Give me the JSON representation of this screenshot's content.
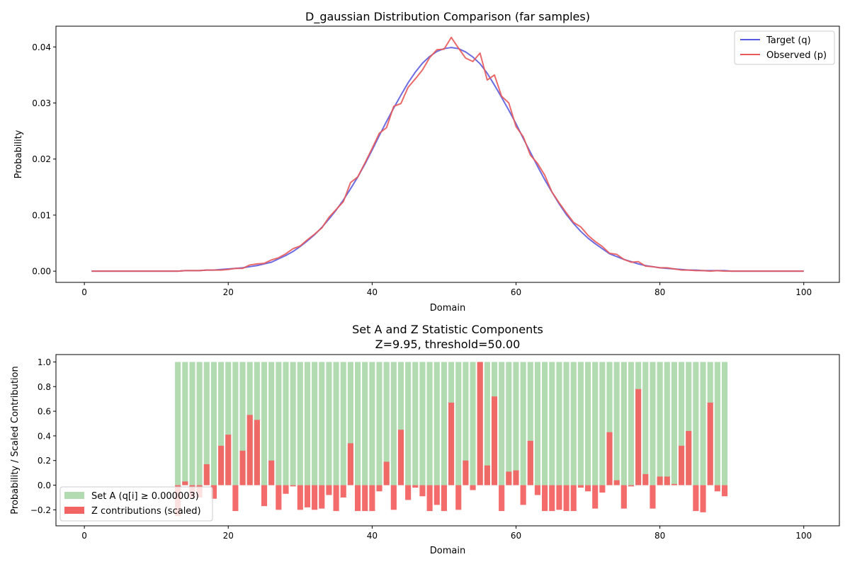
{
  "figure": {
    "charts": [
      {
        "title": "D_gaussian Distribution Comparison (far samples)"
      },
      {
        "title_line1": "Set A and Z Statistic Components",
        "title_line2": "Z=9.95, threshold=50.00"
      }
    ]
  },
  "chart_data": [
    {
      "type": "line",
      "title": "D_gaussian Distribution Comparison (far samples)",
      "xlabel": "Domain",
      "ylabel": "Probability",
      "xlim": [
        -3.95,
        104.95
      ],
      "ylim": [
        -0.002,
        0.0437
      ],
      "xticks": [
        0,
        20,
        40,
        60,
        80,
        100
      ],
      "xtick_labels": [
        "0",
        "20",
        "40",
        "60",
        "80",
        "100"
      ],
      "yticks": [
        0.0,
        0.01,
        0.02,
        0.03,
        0.04
      ],
      "ytick_labels": [
        "0.00",
        "0.01",
        "0.02",
        "0.03",
        "0.04"
      ],
      "grid": false,
      "legend_position": "top-right",
      "x": [
        1,
        2,
        3,
        4,
        5,
        6,
        7,
        8,
        9,
        10,
        11,
        12,
        13,
        14,
        15,
        16,
        17,
        18,
        19,
        20,
        21,
        22,
        23,
        24,
        25,
        26,
        27,
        28,
        29,
        30,
        31,
        32,
        33,
        34,
        35,
        36,
        37,
        38,
        39,
        40,
        41,
        42,
        43,
        44,
        45,
        46,
        47,
        48,
        49,
        50,
        51,
        52,
        53,
        54,
        55,
        56,
        57,
        58,
        59,
        60,
        61,
        62,
        63,
        64,
        65,
        66,
        67,
        68,
        69,
        70,
        71,
        72,
        73,
        74,
        75,
        76,
        77,
        78,
        79,
        80,
        81,
        82,
        83,
        84,
        85,
        86,
        87,
        88,
        89,
        90,
        91,
        92,
        93,
        94,
        95,
        96,
        97,
        98,
        99,
        100
      ],
      "series": [
        {
          "name": "Target (q)",
          "color": "#5b5be0",
          "values": [
            0.0,
            0.0,
            0.0,
            0.0,
            0.0,
            0.0,
            0.0,
            0.0,
            0.0,
            0.0,
            0.0,
            0.0,
            0.0,
            0.0001,
            0.0001,
            0.0001,
            0.0002,
            0.0002,
            0.0003,
            0.0004,
            0.0005,
            0.0006,
            0.0008,
            0.001,
            0.0013,
            0.0016,
            0.0022,
            0.0028,
            0.0035,
            0.0044,
            0.0054,
            0.0065,
            0.0078,
            0.0093,
            0.0109,
            0.0127,
            0.0147,
            0.0168,
            0.0191,
            0.0216,
            0.0242,
            0.0267,
            0.0291,
            0.0314,
            0.0336,
            0.0355,
            0.0371,
            0.0383,
            0.0392,
            0.0397,
            0.0399,
            0.0397,
            0.0391,
            0.0382,
            0.037,
            0.0353,
            0.0332,
            0.031,
            0.0287,
            0.0263,
            0.0237,
            0.0212,
            0.0187,
            0.0163,
            0.0141,
            0.012,
            0.0101,
            0.0085,
            0.0071,
            0.0059,
            0.0049,
            0.004,
            0.0031,
            0.0026,
            0.0021,
            0.0017,
            0.0013,
            0.001,
            0.0008,
            0.0006,
            0.0005,
            0.0004,
            0.0003,
            0.0002,
            0.0002,
            0.0001,
            0.0001,
            0.0001,
            0.0001,
            0.0,
            0.0,
            0.0,
            0.0,
            0.0,
            0.0,
            0.0,
            0.0,
            0.0,
            0.0,
            0.0
          ]
        },
        {
          "name": "Observed (p)",
          "color": "#e85a5a",
          "values": [
            0.0,
            0.0,
            0.0,
            0.0,
            0.0,
            0.0,
            0.0,
            0.0,
            0.0,
            0.0,
            0.0,
            0.0,
            0.0,
            0.0001,
            0.0001,
            0.0001,
            0.0002,
            0.0002,
            0.0002,
            0.0003,
            0.0005,
            0.0005,
            0.0011,
            0.0013,
            0.0014,
            0.002,
            0.0024,
            0.0031,
            0.004,
            0.0045,
            0.0056,
            0.0066,
            0.0077,
            0.0096,
            0.011,
            0.0124,
            0.0158,
            0.0168,
            0.0193,
            0.0219,
            0.0246,
            0.0256,
            0.0294,
            0.0299,
            0.0328,
            0.0343,
            0.0359,
            0.0381,
            0.0395,
            0.0396,
            0.0417,
            0.0398,
            0.038,
            0.0374,
            0.0389,
            0.0341,
            0.035,
            0.0312,
            0.03,
            0.0258,
            0.024,
            0.0207,
            0.0192,
            0.0171,
            0.0141,
            0.0122,
            0.0104,
            0.0087,
            0.0079,
            0.0064,
            0.0053,
            0.0044,
            0.0032,
            0.003,
            0.0021,
            0.0016,
            0.0017,
            0.0009,
            0.0008,
            0.0006,
            0.0006,
            0.0004,
            0.0002,
            0.0002,
            0.0001,
            0.0001,
            0.0,
            0.0001,
            0.0,
            0.0,
            0.0,
            0.0,
            0.0,
            0.0,
            0.0,
            0.0,
            0.0,
            0.0,
            0.0,
            0.0
          ]
        }
      ]
    },
    {
      "type": "bar",
      "title": "Set A and Z Statistic Components\nZ=9.95, threshold=50.00",
      "xlabel": "Domain",
      "ylabel": "Probability / Scaled Contribution",
      "xlim": [
        -3.95,
        104.95
      ],
      "ylim": [
        -0.33,
        1.06
      ],
      "xticks": [
        0,
        20,
        40,
        60,
        80,
        100
      ],
      "xtick_labels": [
        "0",
        "20",
        "40",
        "60",
        "80",
        "100"
      ],
      "yticks": [
        -0.2,
        0.0,
        0.2,
        0.4,
        0.6,
        0.8,
        1.0
      ],
      "ytick_labels": [
        "−0.2",
        "0.0",
        "0.2",
        "0.4",
        "0.6",
        "0.8",
        "1.0"
      ],
      "grid": false,
      "legend_position": "bottom-left",
      "x": [
        13,
        14,
        15,
        16,
        17,
        18,
        19,
        20,
        21,
        22,
        23,
        24,
        25,
        26,
        27,
        28,
        29,
        30,
        31,
        32,
        33,
        34,
        35,
        36,
        37,
        38,
        39,
        40,
        41,
        42,
        43,
        44,
        45,
        46,
        47,
        48,
        49,
        50,
        51,
        52,
        53,
        54,
        55,
        56,
        57,
        58,
        59,
        60,
        61,
        62,
        63,
        64,
        65,
        66,
        67,
        68,
        69,
        70,
        71,
        72,
        73,
        74,
        75,
        76,
        77,
        78,
        79,
        80,
        81,
        82,
        83,
        84,
        85,
        86,
        87,
        88,
        89
      ],
      "series": [
        {
          "name": "Set A (q[i] ≥ 0.000003)",
          "color": "#b2dbb2",
          "values": [
            1,
            1,
            1,
            1,
            1,
            1,
            1,
            1,
            1,
            1,
            1,
            1,
            1,
            1,
            1,
            1,
            1,
            1,
            1,
            1,
            1,
            1,
            1,
            1,
            1,
            1,
            1,
            1,
            1,
            1,
            1,
            1,
            1,
            1,
            1,
            1,
            1,
            1,
            1,
            1,
            1,
            1,
            1,
            1,
            1,
            1,
            1,
            1,
            1,
            1,
            1,
            1,
            1,
            1,
            1,
            1,
            1,
            1,
            1,
            1,
            1,
            1,
            1,
            1,
            1,
            1,
            1,
            1,
            1,
            1,
            1,
            1,
            1,
            1,
            1,
            1,
            1
          ]
        },
        {
          "name": "Z contributions (scaled)",
          "color": "#f26363",
          "values": [
            -0.25,
            0.03,
            -0.1,
            -0.1,
            0.17,
            -0.11,
            0.32,
            0.41,
            -0.21,
            0.28,
            0.57,
            0.53,
            -0.17,
            0.2,
            -0.2,
            -0.07,
            -0.01,
            -0.2,
            -0.18,
            -0.2,
            -0.19,
            -0.08,
            -0.21,
            -0.1,
            0.34,
            -0.21,
            -0.21,
            -0.21,
            -0.05,
            0.19,
            -0.2,
            0.45,
            -0.12,
            -0.02,
            -0.09,
            -0.21,
            -0.16,
            -0.21,
            0.67,
            -0.2,
            0.2,
            -0.04,
            1.0,
            0.16,
            0.72,
            -0.21,
            0.11,
            0.12,
            -0.16,
            0.36,
            -0.08,
            -0.21,
            -0.21,
            -0.2,
            -0.21,
            -0.21,
            -0.02,
            -0.05,
            -0.19,
            -0.06,
            0.43,
            0.04,
            -0.19,
            -0.01,
            0.78,
            0.09,
            -0.19,
            0.07,
            0.07,
            0.01,
            0.32,
            0.44,
            -0.21,
            -0.22,
            0.67,
            -0.05,
            -0.09
          ]
        }
      ]
    }
  ]
}
